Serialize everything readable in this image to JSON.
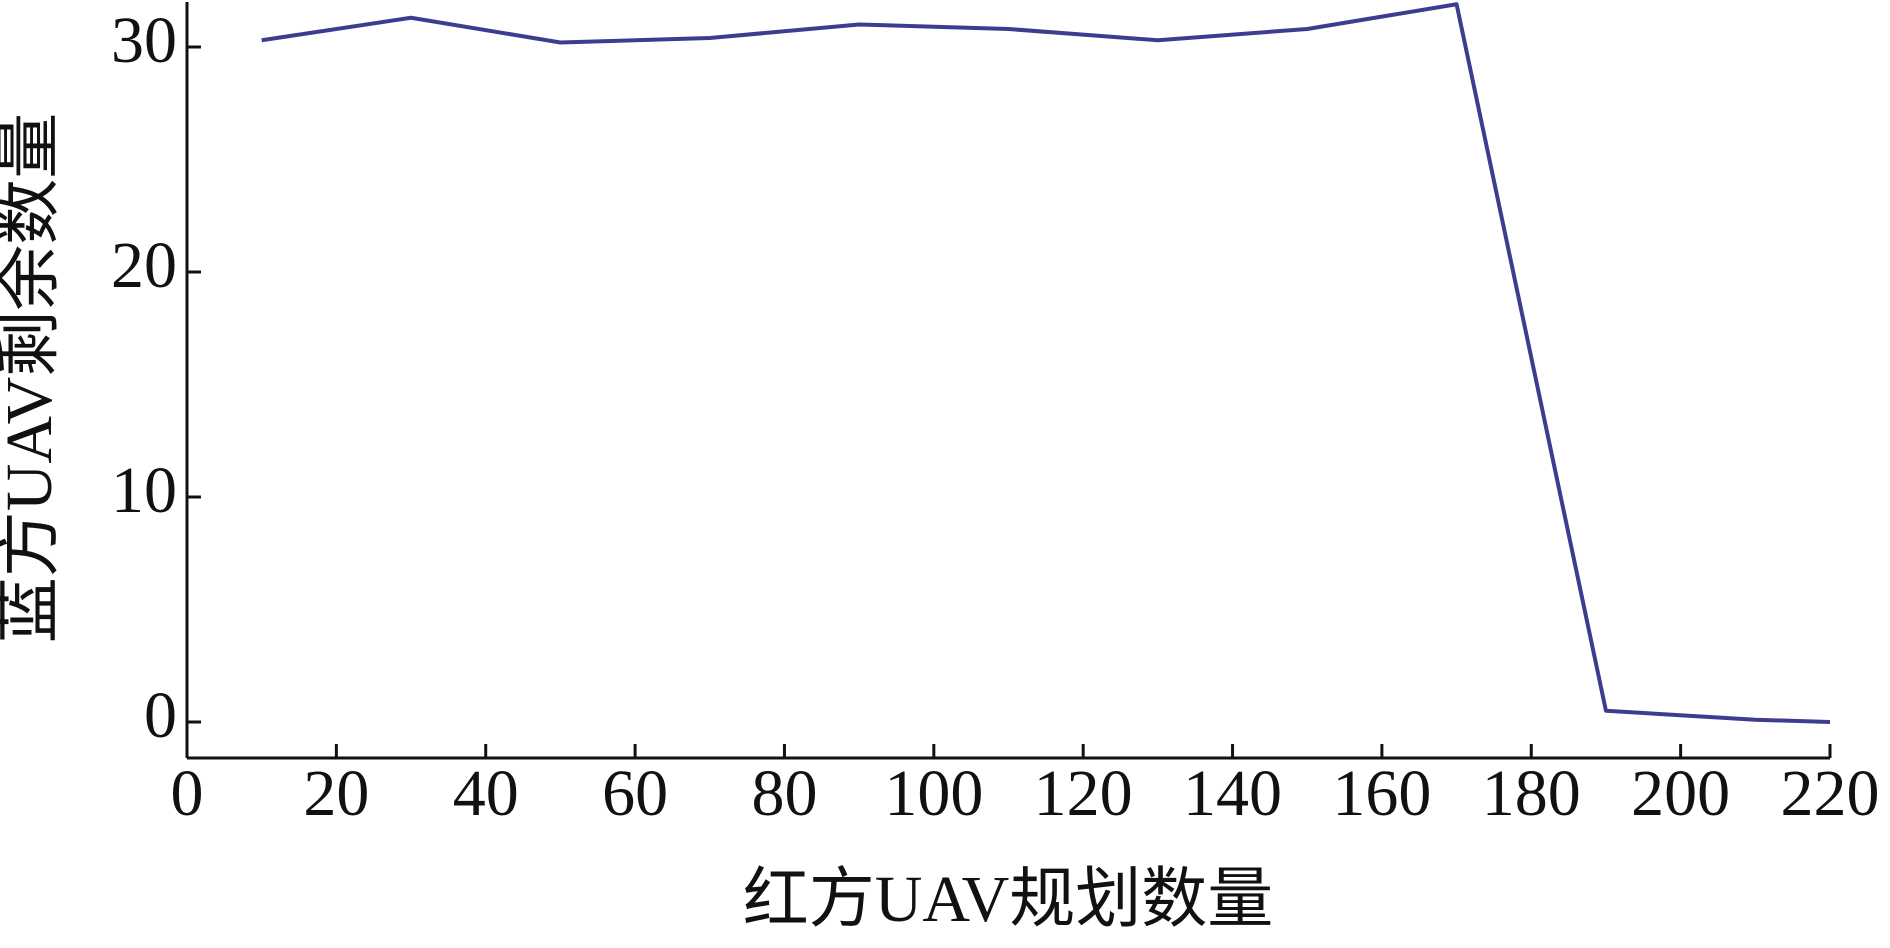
{
  "chart_data": {
    "type": "line",
    "x_label": "红方UAV规划数量",
    "y_label": "蓝方UAV剩余数量",
    "x": [
      10,
      30,
      50,
      70,
      90,
      110,
      130,
      150,
      170,
      190,
      210,
      220
    ],
    "series": [
      {
        "color": "#3d3d8f",
        "values": [
          30.3,
          31.3,
          30.2,
          30.4,
          31.0,
          30.8,
          30.3,
          30.8,
          31.9,
          0.5,
          0.1,
          0.0
        ]
      }
    ],
    "xlim": [
      0,
      220
    ],
    "ylim": [
      -1.6,
      32
    ],
    "xticks": [
      0,
      20,
      40,
      60,
      80,
      100,
      120,
      140,
      160,
      180,
      200,
      220
    ],
    "yticks": [
      0,
      10,
      20,
      30
    ]
  }
}
